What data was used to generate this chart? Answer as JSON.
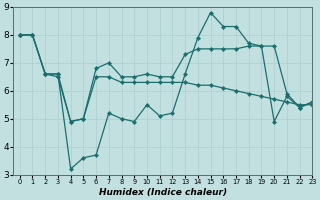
{
  "xlabel": "Humidex (Indice chaleur)",
  "xlim": [
    -0.5,
    23
  ],
  "ylim": [
    3,
    9
  ],
  "yticks": [
    3,
    4,
    5,
    6,
    7,
    8,
    9
  ],
  "xticks": [
    0,
    1,
    2,
    3,
    4,
    5,
    6,
    7,
    8,
    9,
    10,
    11,
    12,
    13,
    14,
    15,
    16,
    17,
    18,
    19,
    20,
    21,
    22,
    23
  ],
  "bg_color": "#c2e0e0",
  "grid_color": "#aacece",
  "line_color": "#1a6e6e",
  "s1_y": [
    8.0,
    8.0,
    6.6,
    6.6,
    3.2,
    3.6,
    3.7,
    5.2,
    5.0,
    4.9,
    5.5,
    5.1,
    5.2,
    6.6,
    7.9,
    8.8,
    8.3,
    8.3,
    7.7,
    7.6,
    4.9,
    5.8,
    5.4,
    5.6
  ],
  "s2_y": [
    8.0,
    8.0,
    6.6,
    6.6,
    4.9,
    5.0,
    6.8,
    7.0,
    6.5,
    6.5,
    6.6,
    6.5,
    6.5,
    7.3,
    7.5,
    7.5,
    7.5,
    7.5,
    7.6,
    7.6,
    7.6,
    5.9,
    5.4,
    5.6
  ],
  "s3_y": [
    8.0,
    8.0,
    6.6,
    6.5,
    4.9,
    5.0,
    6.5,
    6.5,
    6.3,
    6.3,
    6.3,
    6.3,
    6.3,
    6.3,
    6.2,
    6.2,
    6.1,
    6.0,
    5.9,
    5.8,
    5.7,
    5.6,
    5.5,
    5.5
  ]
}
